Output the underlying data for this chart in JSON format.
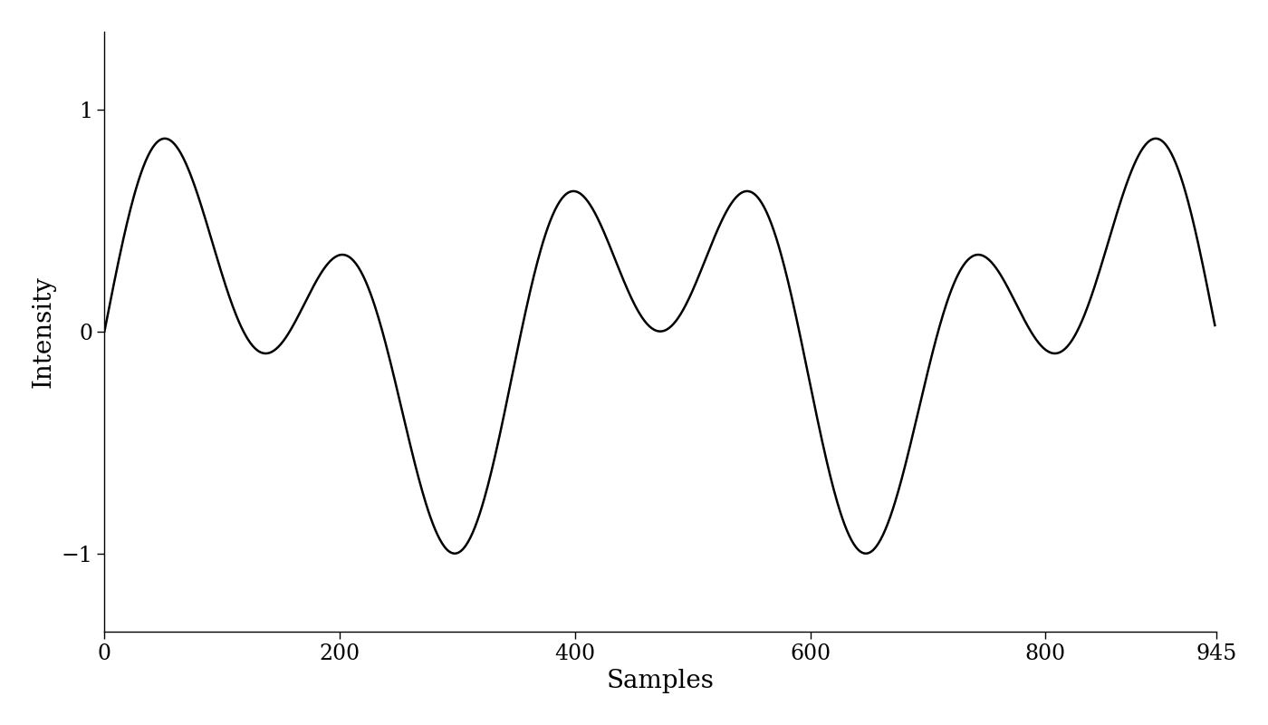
{
  "n_samples": 945,
  "line_color": "#000000",
  "line_width": 1.8,
  "background_color": "#ffffff",
  "xlabel": "Samples",
  "ylabel": "Intensity",
  "xlim": [
    0,
    945
  ],
  "ylim": [
    -1.35,
    1.35
  ],
  "xticks": [
    0,
    200,
    400,
    600,
    800,
    945
  ],
  "yticks": [
    -1,
    0,
    1
  ],
  "xlabel_fontsize": 20,
  "ylabel_fontsize": 20,
  "tick_fontsize": 17,
  "spine_linewidth": 1.0,
  "f1_cycles": 5.5,
  "f2_cycles": 2.5
}
